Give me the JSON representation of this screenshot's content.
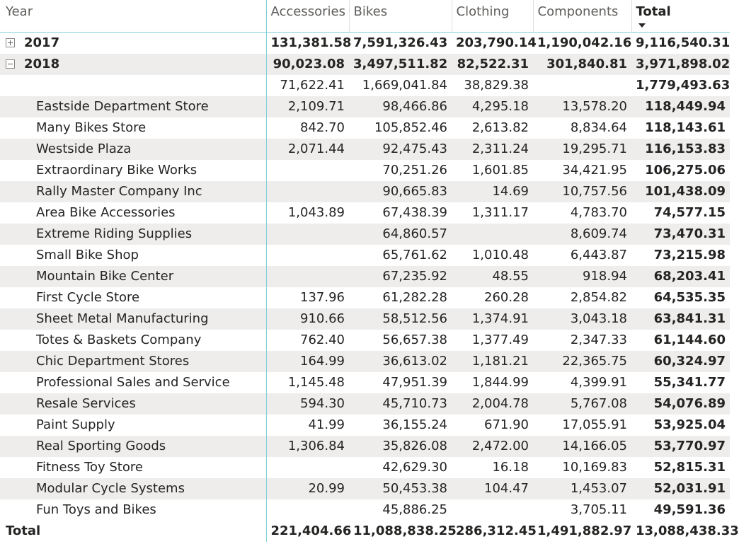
{
  "matrix": {
    "columns": {
      "row_header": "Year",
      "accessories": "Accessories",
      "bikes": "Bikes",
      "clothing": "Clothing",
      "components": "Components",
      "total": "Total"
    },
    "years": [
      {
        "label": "2017",
        "expanded": false,
        "accessories": "131,381.58",
        "bikes": "7,591,326.43",
        "clothing": "203,790.14",
        "components": "1,190,042.16",
        "total": "9,116,540.31"
      },
      {
        "label": "2018",
        "expanded": true,
        "accessories": "90,023.08",
        "bikes": "3,497,511.82",
        "clothing": "82,522.31",
        "components": "301,840.81",
        "total": "3,971,898.02"
      }
    ],
    "rows": [
      {
        "name": "",
        "accessories": "71,622.41",
        "bikes": "1,669,041.84",
        "clothing": "38,829.38",
        "components": "",
        "total": "1,779,493.63"
      },
      {
        "name": "Eastside Department Store",
        "accessories": "2,109.71",
        "bikes": "98,466.86",
        "clothing": "4,295.18",
        "components": "13,578.20",
        "total": "118,449.94"
      },
      {
        "name": "Many Bikes Store",
        "accessories": "842.70",
        "bikes": "105,852.46",
        "clothing": "2,613.82",
        "components": "8,834.64",
        "total": "118,143.61"
      },
      {
        "name": "Westside Plaza",
        "accessories": "2,071.44",
        "bikes": "92,475.43",
        "clothing": "2,311.24",
        "components": "19,295.71",
        "total": "116,153.83"
      },
      {
        "name": "Extraordinary Bike Works",
        "accessories": "",
        "bikes": "70,251.26",
        "clothing": "1,601.85",
        "components": "34,421.95",
        "total": "106,275.06"
      },
      {
        "name": "Rally Master Company Inc",
        "accessories": "",
        "bikes": "90,665.83",
        "clothing": "14.69",
        "components": "10,757.56",
        "total": "101,438.09"
      },
      {
        "name": "Area Bike Accessories",
        "accessories": "1,043.89",
        "bikes": "67,438.39",
        "clothing": "1,311.17",
        "components": "4,783.70",
        "total": "74,577.15"
      },
      {
        "name": "Extreme Riding Supplies",
        "accessories": "",
        "bikes": "64,860.57",
        "clothing": "",
        "components": "8,609.74",
        "total": "73,470.31"
      },
      {
        "name": "Small Bike Shop",
        "accessories": "",
        "bikes": "65,761.62",
        "clothing": "1,010.48",
        "components": "6,443.87",
        "total": "73,215.98"
      },
      {
        "name": "Mountain Bike Center",
        "accessories": "",
        "bikes": "67,235.92",
        "clothing": "48.55",
        "components": "918.94",
        "total": "68,203.41"
      },
      {
        "name": "First Cycle Store",
        "accessories": "137.96",
        "bikes": "61,282.28",
        "clothing": "260.28",
        "components": "2,854.82",
        "total": "64,535.35"
      },
      {
        "name": "Sheet Metal Manufacturing",
        "accessories": "910.66",
        "bikes": "58,512.56",
        "clothing": "1,374.91",
        "components": "3,043.18",
        "total": "63,841.31"
      },
      {
        "name": "Totes & Baskets Company",
        "accessories": "762.40",
        "bikes": "56,657.38",
        "clothing": "1,377.49",
        "components": "2,347.33",
        "total": "61,144.60"
      },
      {
        "name": "Chic Department Stores",
        "accessories": "164.99",
        "bikes": "36,613.02",
        "clothing": "1,181.21",
        "components": "22,365.75",
        "total": "60,324.97"
      },
      {
        "name": "Professional Sales and Service",
        "accessories": "1,145.48",
        "bikes": "47,951.39",
        "clothing": "1,844.99",
        "components": "4,399.91",
        "total": "55,341.77"
      },
      {
        "name": "Resale Services",
        "accessories": "594.30",
        "bikes": "45,710.73",
        "clothing": "2,004.78",
        "components": "5,767.08",
        "total": "54,076.89"
      },
      {
        "name": "Paint Supply",
        "accessories": "41.99",
        "bikes": "36,155.24",
        "clothing": "671.90",
        "components": "17,055.91",
        "total": "53,925.04"
      },
      {
        "name": "Real Sporting Goods",
        "accessories": "1,306.84",
        "bikes": "35,826.08",
        "clothing": "2,472.00",
        "components": "14,166.05",
        "total": "53,770.97"
      },
      {
        "name": "Fitness Toy Store",
        "accessories": "",
        "bikes": "42,629.30",
        "clothing": "16.18",
        "components": "10,169.83",
        "total": "52,815.31"
      },
      {
        "name": "Modular Cycle Systems",
        "accessories": "20.99",
        "bikes": "50,453.38",
        "clothing": "104.47",
        "components": "1,453.07",
        "total": "52,031.91"
      },
      {
        "name": "Fun Toys and Bikes",
        "accessories": "",
        "bikes": "45,886.25",
        "clothing": "",
        "components": "3,705.11",
        "total": "49,591.36"
      }
    ],
    "grand_total": {
      "label": "Total",
      "accessories": "221,404.66",
      "bikes": "11,088,838.25",
      "clothing": "286,312.45",
      "components": "1,491,882.97",
      "total": "13,088,438.33"
    },
    "sort": {
      "column": "total",
      "direction": "descending",
      "icon": "sort-descending-icon"
    },
    "colors": {
      "accent_border": "#7fd1d9",
      "band_background": "#eeedec",
      "header_text": "#605e5c",
      "body_text": "#252423"
    }
  }
}
